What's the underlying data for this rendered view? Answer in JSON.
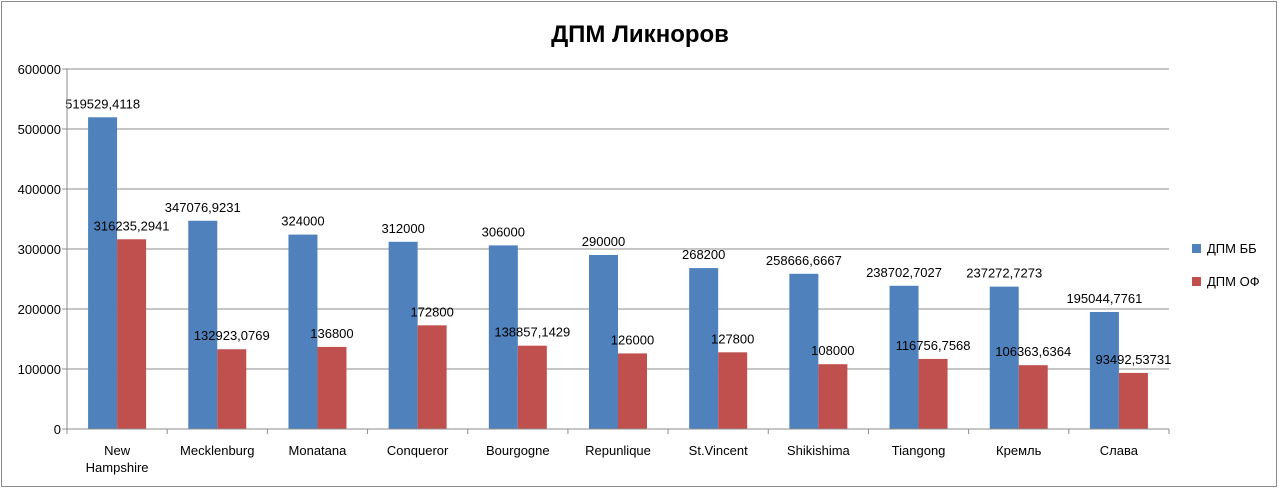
{
  "chart_data": {
    "type": "bar",
    "title": "ДПМ Ликноров",
    "xlabel": "",
    "ylabel": "",
    "ylim": [
      0,
      600000
    ],
    "yticks": [
      0,
      100000,
      200000,
      300000,
      400000,
      500000,
      600000
    ],
    "grid": true,
    "legend_position": "right",
    "categories": [
      [
        "New",
        "Hampshire"
      ],
      [
        "Mecklenburg"
      ],
      [
        "Monatana"
      ],
      [
        "Conqueror"
      ],
      [
        "Bourgogne"
      ],
      [
        "Repunlique"
      ],
      [
        "St.Vincent"
      ],
      [
        "Shikishima"
      ],
      [
        "Tiangong"
      ],
      [
        "Кремль"
      ],
      [
        "Слава"
      ]
    ],
    "series": [
      {
        "name": "ДПМ ББ",
        "color": "#4f81bd",
        "values": [
          519529.4118,
          347076.9231,
          324000,
          312000,
          306000,
          290000,
          268200,
          258666.6667,
          238702.7027,
          237272.7273,
          195044.7761
        ],
        "labels": [
          "519529,4118",
          "347076,9231",
          "324000",
          "312000",
          "306000",
          "290000",
          "268200",
          "258666,6667",
          "238702,7027",
          "237272,7273",
          "195044,7761"
        ]
      },
      {
        "name": "ДПМ ОФ",
        "color": "#c0504d",
        "values": [
          316235.2941,
          132923.0769,
          136800,
          172800,
          138857.1429,
          126000,
          127800,
          108000,
          116756.7568,
          106363.6364,
          93492.53731
        ],
        "labels": [
          "316235,2941",
          "132923,0769",
          "136800",
          "172800",
          "138857,1429",
          "126000",
          "127800",
          "108000",
          "116756,7568",
          "106363,6364",
          "93492,53731"
        ]
      }
    ]
  }
}
